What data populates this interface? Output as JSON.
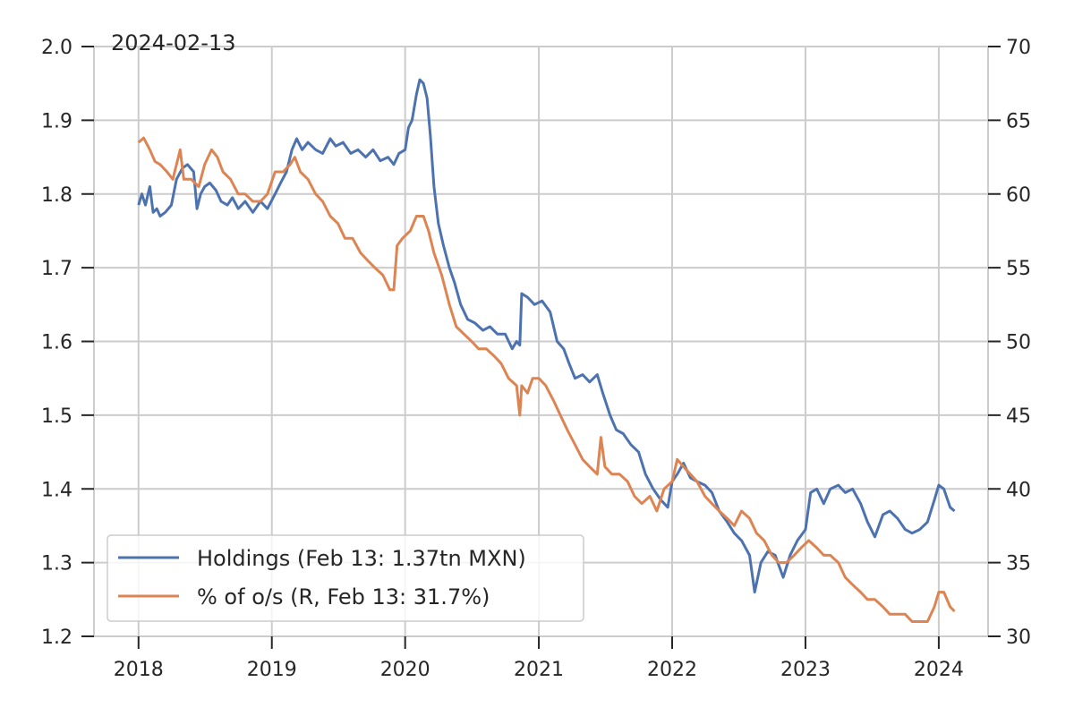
{
  "chart_data": {
    "type": "line",
    "date_label": "2024-02-13",
    "grid": true,
    "legend_position": "lower-left",
    "x_axis": {
      "type": "date",
      "range": [
        "2017-09-01",
        "2024-05-15"
      ],
      "tick_labels": [
        "2018",
        "2019",
        "2020",
        "2021",
        "2022",
        "2023",
        "2024"
      ],
      "tick_dates": [
        "2018-01-01",
        "2019-01-01",
        "2020-01-01",
        "2021-01-01",
        "2022-01-01",
        "2023-01-01",
        "2024-01-01"
      ]
    },
    "y_left": {
      "range": [
        1.2,
        2.0
      ],
      "tick_labels": [
        "1.2",
        "1.3",
        "1.4",
        "1.5",
        "1.6",
        "1.7",
        "1.8",
        "1.9",
        "2.0"
      ]
    },
    "y_right": {
      "range": [
        30,
        70
      ],
      "tick_labels": [
        "30",
        "35",
        "40",
        "45",
        "50",
        "55",
        "60",
        "65",
        "70"
      ]
    },
    "series": [
      {
        "name": "Holdings (Feb 13: 1.37tn MXN)",
        "axis": "left",
        "color": "#4c72b0",
        "points": [
          [
            "2018-01-01",
            1.785
          ],
          [
            "2018-01-10",
            1.8
          ],
          [
            "2018-01-20",
            1.785
          ],
          [
            "2018-02-01",
            1.81
          ],
          [
            "2018-02-10",
            1.775
          ],
          [
            "2018-02-20",
            1.78
          ],
          [
            "2018-03-01",
            1.77
          ],
          [
            "2018-03-15",
            1.775
          ],
          [
            "2018-04-01",
            1.785
          ],
          [
            "2018-04-15",
            1.82
          ],
          [
            "2018-05-01",
            1.835
          ],
          [
            "2018-05-15",
            1.84
          ],
          [
            "2018-06-01",
            1.83
          ],
          [
            "2018-06-10",
            1.78
          ],
          [
            "2018-06-20",
            1.8
          ],
          [
            "2018-07-01",
            1.81
          ],
          [
            "2018-07-15",
            1.815
          ],
          [
            "2018-08-01",
            1.805
          ],
          [
            "2018-08-15",
            1.79
          ],
          [
            "2018-09-01",
            1.785
          ],
          [
            "2018-09-15",
            1.795
          ],
          [
            "2018-10-01",
            1.78
          ],
          [
            "2018-10-20",
            1.79
          ],
          [
            "2018-11-10",
            1.775
          ],
          [
            "2018-12-01",
            1.79
          ],
          [
            "2018-12-20",
            1.78
          ],
          [
            "2019-01-10",
            1.8
          ],
          [
            "2019-01-25",
            1.815
          ],
          [
            "2019-02-10",
            1.83
          ],
          [
            "2019-02-25",
            1.86
          ],
          [
            "2019-03-10",
            1.875
          ],
          [
            "2019-03-25",
            1.86
          ],
          [
            "2019-04-10",
            1.87
          ],
          [
            "2019-05-01",
            1.86
          ],
          [
            "2019-05-20",
            1.855
          ],
          [
            "2019-06-10",
            1.875
          ],
          [
            "2019-06-25",
            1.865
          ],
          [
            "2019-07-15",
            1.87
          ],
          [
            "2019-08-05",
            1.855
          ],
          [
            "2019-08-25",
            1.86
          ],
          [
            "2019-09-15",
            1.85
          ],
          [
            "2019-10-05",
            1.86
          ],
          [
            "2019-10-25",
            1.845
          ],
          [
            "2019-11-15",
            1.85
          ],
          [
            "2019-12-01",
            1.84
          ],
          [
            "2019-12-15",
            1.855
          ],
          [
            "2020-01-01",
            1.86
          ],
          [
            "2020-01-10",
            1.89
          ],
          [
            "2020-01-20",
            1.9
          ],
          [
            "2020-02-01",
            1.935
          ],
          [
            "2020-02-10",
            1.955
          ],
          [
            "2020-02-20",
            1.95
          ],
          [
            "2020-03-01",
            1.93
          ],
          [
            "2020-03-10",
            1.88
          ],
          [
            "2020-03-20",
            1.81
          ],
          [
            "2020-04-01",
            1.76
          ],
          [
            "2020-04-15",
            1.73
          ],
          [
            "2020-05-01",
            1.7
          ],
          [
            "2020-05-15",
            1.68
          ],
          [
            "2020-06-01",
            1.65
          ],
          [
            "2020-06-20",
            1.63
          ],
          [
            "2020-07-10",
            1.625
          ],
          [
            "2020-08-01",
            1.615
          ],
          [
            "2020-08-20",
            1.62
          ],
          [
            "2020-09-10",
            1.61
          ],
          [
            "2020-10-01",
            1.61
          ],
          [
            "2020-10-20",
            1.59
          ],
          [
            "2020-11-01",
            1.6
          ],
          [
            "2020-11-10",
            1.595
          ],
          [
            "2020-11-15",
            1.665
          ],
          [
            "2020-12-01",
            1.66
          ],
          [
            "2020-12-20",
            1.65
          ],
          [
            "2021-01-10",
            1.655
          ],
          [
            "2021-02-01",
            1.64
          ],
          [
            "2021-02-20",
            1.6
          ],
          [
            "2021-03-10",
            1.59
          ],
          [
            "2021-03-25",
            1.57
          ],
          [
            "2021-04-10",
            1.55
          ],
          [
            "2021-05-01",
            1.555
          ],
          [
            "2021-05-20",
            1.545
          ],
          [
            "2021-06-10",
            1.555
          ],
          [
            "2021-06-25",
            1.53
          ],
          [
            "2021-07-15",
            1.5
          ],
          [
            "2021-08-01",
            1.48
          ],
          [
            "2021-08-20",
            1.475
          ],
          [
            "2021-09-10",
            1.46
          ],
          [
            "2021-10-01",
            1.45
          ],
          [
            "2021-10-20",
            1.42
          ],
          [
            "2021-11-10",
            1.4
          ],
          [
            "2021-12-01",
            1.385
          ],
          [
            "2021-12-20",
            1.375
          ],
          [
            "2022-01-01",
            1.41
          ],
          [
            "2022-01-15",
            1.42
          ],
          [
            "2022-02-01",
            1.435
          ],
          [
            "2022-02-20",
            1.415
          ],
          [
            "2022-03-10",
            1.41
          ],
          [
            "2022-04-01",
            1.405
          ],
          [
            "2022-04-20",
            1.395
          ],
          [
            "2022-05-10",
            1.37
          ],
          [
            "2022-06-01",
            1.355
          ],
          [
            "2022-06-20",
            1.34
          ],
          [
            "2022-07-10",
            1.33
          ],
          [
            "2022-08-01",
            1.31
          ],
          [
            "2022-08-15",
            1.26
          ],
          [
            "2022-09-01",
            1.3
          ],
          [
            "2022-09-20",
            1.315
          ],
          [
            "2022-10-10",
            1.31
          ],
          [
            "2022-11-01",
            1.28
          ],
          [
            "2022-11-20",
            1.31
          ],
          [
            "2022-12-10",
            1.33
          ],
          [
            "2023-01-01",
            1.345
          ],
          [
            "2023-01-15",
            1.395
          ],
          [
            "2023-02-01",
            1.4
          ],
          [
            "2023-02-20",
            1.38
          ],
          [
            "2023-03-10",
            1.4
          ],
          [
            "2023-04-01",
            1.405
          ],
          [
            "2023-04-20",
            1.395
          ],
          [
            "2023-05-10",
            1.4
          ],
          [
            "2023-06-01",
            1.38
          ],
          [
            "2023-06-20",
            1.355
          ],
          [
            "2023-07-10",
            1.335
          ],
          [
            "2023-08-01",
            1.365
          ],
          [
            "2023-08-20",
            1.37
          ],
          [
            "2023-09-10",
            1.36
          ],
          [
            "2023-10-01",
            1.345
          ],
          [
            "2023-10-20",
            1.34
          ],
          [
            "2023-11-10",
            1.345
          ],
          [
            "2023-12-01",
            1.355
          ],
          [
            "2023-12-20",
            1.385
          ],
          [
            "2024-01-01",
            1.405
          ],
          [
            "2024-01-15",
            1.4
          ],
          [
            "2024-02-01",
            1.375
          ],
          [
            "2024-02-13",
            1.37
          ]
        ]
      },
      {
        "name": "% of o/s (R, Feb 13: 31.7%)",
        "axis": "right",
        "color": "#dd8452",
        "points": [
          [
            "2018-01-01",
            63.5
          ],
          [
            "2018-01-15",
            63.8
          ],
          [
            "2018-02-01",
            63.0
          ],
          [
            "2018-02-15",
            62.2
          ],
          [
            "2018-03-01",
            62.0
          ],
          [
            "2018-03-20",
            61.5
          ],
          [
            "2018-04-05",
            61.0
          ],
          [
            "2018-04-25",
            63.0
          ],
          [
            "2018-05-05",
            61.0
          ],
          [
            "2018-05-25",
            61.0
          ],
          [
            "2018-06-15",
            60.5
          ],
          [
            "2018-07-01",
            62.0
          ],
          [
            "2018-07-20",
            63.0
          ],
          [
            "2018-08-05",
            62.5
          ],
          [
            "2018-08-20",
            61.5
          ],
          [
            "2018-09-10",
            61.0
          ],
          [
            "2018-10-01",
            60.0
          ],
          [
            "2018-10-20",
            60.0
          ],
          [
            "2018-11-10",
            59.5
          ],
          [
            "2018-12-01",
            59.5
          ],
          [
            "2018-12-20",
            60.0
          ],
          [
            "2019-01-10",
            61.5
          ],
          [
            "2019-02-01",
            61.5
          ],
          [
            "2019-02-20",
            62.0
          ],
          [
            "2019-03-05",
            62.5
          ],
          [
            "2019-03-20",
            61.5
          ],
          [
            "2019-04-10",
            61.0
          ],
          [
            "2019-05-01",
            60.0
          ],
          [
            "2019-05-20",
            59.5
          ],
          [
            "2019-06-10",
            58.5
          ],
          [
            "2019-07-01",
            58.0
          ],
          [
            "2019-07-20",
            57.0
          ],
          [
            "2019-08-10",
            57.0
          ],
          [
            "2019-09-01",
            56.0
          ],
          [
            "2019-09-20",
            55.5
          ],
          [
            "2019-10-10",
            55.0
          ],
          [
            "2019-11-01",
            54.5
          ],
          [
            "2019-11-20",
            53.5
          ],
          [
            "2019-12-01",
            53.5
          ],
          [
            "2019-12-10",
            56.5
          ],
          [
            "2019-12-25",
            57.0
          ],
          [
            "2020-01-15",
            57.5
          ],
          [
            "2020-02-01",
            58.5
          ],
          [
            "2020-02-20",
            58.5
          ],
          [
            "2020-03-05",
            57.5
          ],
          [
            "2020-03-20",
            56.0
          ],
          [
            "2020-04-10",
            54.5
          ],
          [
            "2020-05-01",
            52.5
          ],
          [
            "2020-05-20",
            51.0
          ],
          [
            "2020-06-10",
            50.5
          ],
          [
            "2020-07-01",
            50.0
          ],
          [
            "2020-07-20",
            49.5
          ],
          [
            "2020-08-10",
            49.5
          ],
          [
            "2020-09-01",
            49.0
          ],
          [
            "2020-09-20",
            48.5
          ],
          [
            "2020-10-10",
            47.5
          ],
          [
            "2020-11-01",
            47.0
          ],
          [
            "2020-11-10",
            45.0
          ],
          [
            "2020-11-15",
            47.0
          ],
          [
            "2020-12-01",
            46.5
          ],
          [
            "2020-12-15",
            47.5
          ],
          [
            "2021-01-01",
            47.5
          ],
          [
            "2021-01-20",
            47.0
          ],
          [
            "2021-02-10",
            46.0
          ],
          [
            "2021-03-01",
            45.0
          ],
          [
            "2021-03-20",
            44.0
          ],
          [
            "2021-04-10",
            43.0
          ],
          [
            "2021-05-01",
            42.0
          ],
          [
            "2021-05-20",
            41.5
          ],
          [
            "2021-06-10",
            41.0
          ],
          [
            "2021-06-20",
            43.5
          ],
          [
            "2021-07-01",
            41.5
          ],
          [
            "2021-07-20",
            41.0
          ],
          [
            "2021-08-10",
            41.0
          ],
          [
            "2021-09-01",
            40.5
          ],
          [
            "2021-09-20",
            39.5
          ],
          [
            "2021-10-10",
            39.0
          ],
          [
            "2021-11-01",
            39.5
          ],
          [
            "2021-11-20",
            38.5
          ],
          [
            "2021-12-10",
            40.0
          ],
          [
            "2022-01-01",
            40.5
          ],
          [
            "2022-01-15",
            42.0
          ],
          [
            "2022-02-01",
            41.5
          ],
          [
            "2022-02-20",
            41.0
          ],
          [
            "2022-03-10",
            40.5
          ],
          [
            "2022-04-01",
            39.5
          ],
          [
            "2022-04-20",
            39.0
          ],
          [
            "2022-05-10",
            38.5
          ],
          [
            "2022-06-01",
            38.0
          ],
          [
            "2022-06-20",
            37.5
          ],
          [
            "2022-07-10",
            38.5
          ],
          [
            "2022-08-01",
            38.0
          ],
          [
            "2022-08-20",
            37.0
          ],
          [
            "2022-09-10",
            36.5
          ],
          [
            "2022-10-01",
            35.5
          ],
          [
            "2022-10-20",
            35.0
          ],
          [
            "2022-11-10",
            35.0
          ],
          [
            "2022-12-01",
            35.5
          ],
          [
            "2022-12-20",
            36.0
          ],
          [
            "2023-01-10",
            36.5
          ],
          [
            "2023-02-01",
            36.0
          ],
          [
            "2023-02-20",
            35.5
          ],
          [
            "2023-03-10",
            35.5
          ],
          [
            "2023-04-01",
            35.0
          ],
          [
            "2023-04-20",
            34.0
          ],
          [
            "2023-05-10",
            33.5
          ],
          [
            "2023-06-01",
            33.0
          ],
          [
            "2023-06-20",
            32.5
          ],
          [
            "2023-07-10",
            32.5
          ],
          [
            "2023-08-01",
            32.0
          ],
          [
            "2023-08-20",
            31.5
          ],
          [
            "2023-09-10",
            31.5
          ],
          [
            "2023-10-01",
            31.5
          ],
          [
            "2023-10-20",
            31.0
          ],
          [
            "2023-11-10",
            31.0
          ],
          [
            "2023-12-01",
            31.0
          ],
          [
            "2023-12-20",
            32.0
          ],
          [
            "2024-01-01",
            33.0
          ],
          [
            "2024-01-15",
            33.0
          ],
          [
            "2024-02-01",
            32.0
          ],
          [
            "2024-02-13",
            31.7
          ]
        ]
      }
    ]
  }
}
